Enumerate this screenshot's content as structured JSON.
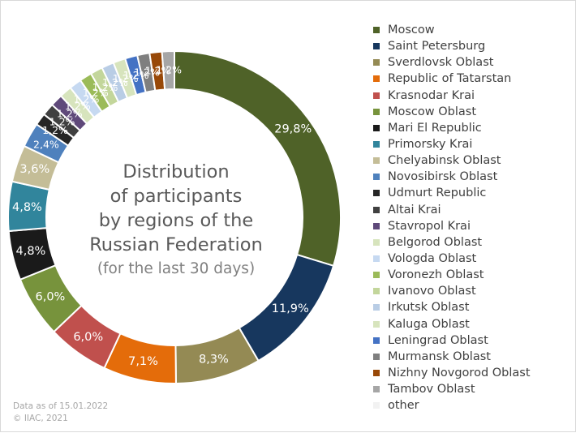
{
  "chart_data": {
    "type": "pie",
    "title": "Distribution of participants by regions of the Russian Federation (for the last 30 days)",
    "title_lines": [
      "Distribution",
      "of participants",
      "by regions of the",
      "Russian Federation"
    ],
    "subtitle": "(for the last 30 days)",
    "legend_position": "right",
    "categories": [
      "Moscow",
      "Saint Petersburg",
      "Sverdlovsk Oblast",
      "Republic of Tatarstan",
      "Krasnodar Krai",
      "Moscow Oblast",
      "Mari El Republic",
      "Primorsky Krai",
      "Chelyabinsk Oblast",
      "Novosibirsk Oblast",
      "Udmurt Republic",
      "Altai Krai",
      "Stavropol Krai",
      "Belgorod Oblast",
      "Vologda Oblast",
      "Voronezh Oblast",
      "Ivanovo Oblast",
      "Irkutsk Oblast",
      "Kaluga Oblast",
      "Leningrad Oblast",
      "Murmansk Oblast",
      "Nizhny Novgorod Oblast",
      "Tambov Oblast",
      "other"
    ],
    "values": [
      29.8,
      11.9,
      8.3,
      7.1,
      6.0,
      6.0,
      4.8,
      4.8,
      3.6,
      2.4,
      1.2,
      1.2,
      1.2,
      1.2,
      1.2,
      1.2,
      1.2,
      1.2,
      1.2,
      1.2,
      1.2,
      1.2,
      1.2,
      0.0
    ],
    "labels": [
      "29,8%",
      "11,9%",
      "8,3%",
      "7,1%",
      "6,0%",
      "6,0%",
      "4,8%",
      "4,8%",
      "3,6%",
      "2,4%",
      "1,2%",
      "1,2%",
      "1,2%",
      "1,2%",
      "1,2%",
      "1,2%",
      "1,2%",
      "1,2%",
      "1,2%",
      "1,2%",
      "1,2%",
      "1,2%",
      "1,2%",
      ""
    ],
    "colors": [
      "#4f6228",
      "#17375e",
      "#948a54",
      "#e46c0a",
      "#c0504d",
      "#77933c",
      "#1a1a1a",
      "#31859c",
      "#c4bd97",
      "#4f81bd",
      "#262626",
      "#404040",
      "#5f497a",
      "#d7e4bd",
      "#c6d9f1",
      "#9bbb59",
      "#c3d69b",
      "#b9cde5",
      "#d7e4bd",
      "#4472c4",
      "#7f7f7f",
      "#984807",
      "#a6a6a6",
      "#f2f2f2"
    ],
    "label_colors": [
      "#ffffff",
      "#ffffff",
      "#ffffff",
      "#ffffff",
      "#ffffff",
      "#ffffff",
      "#ffffff",
      "#ffffff",
      "#ffffff",
      "#ffffff",
      "#ffffff",
      "#ffffff",
      "#ffffff",
      "#ffffff",
      "#ffffff",
      "#ffffff",
      "#ffffff",
      "#ffffff",
      "#ffffff",
      "#ffffff",
      "#ffffff",
      "#ffffff",
      "#ffffff",
      "#ffffff"
    ]
  },
  "footnote": {
    "date_line": "Data as of 15.01.2022",
    "copyright": "© IIAC, 2021"
  }
}
